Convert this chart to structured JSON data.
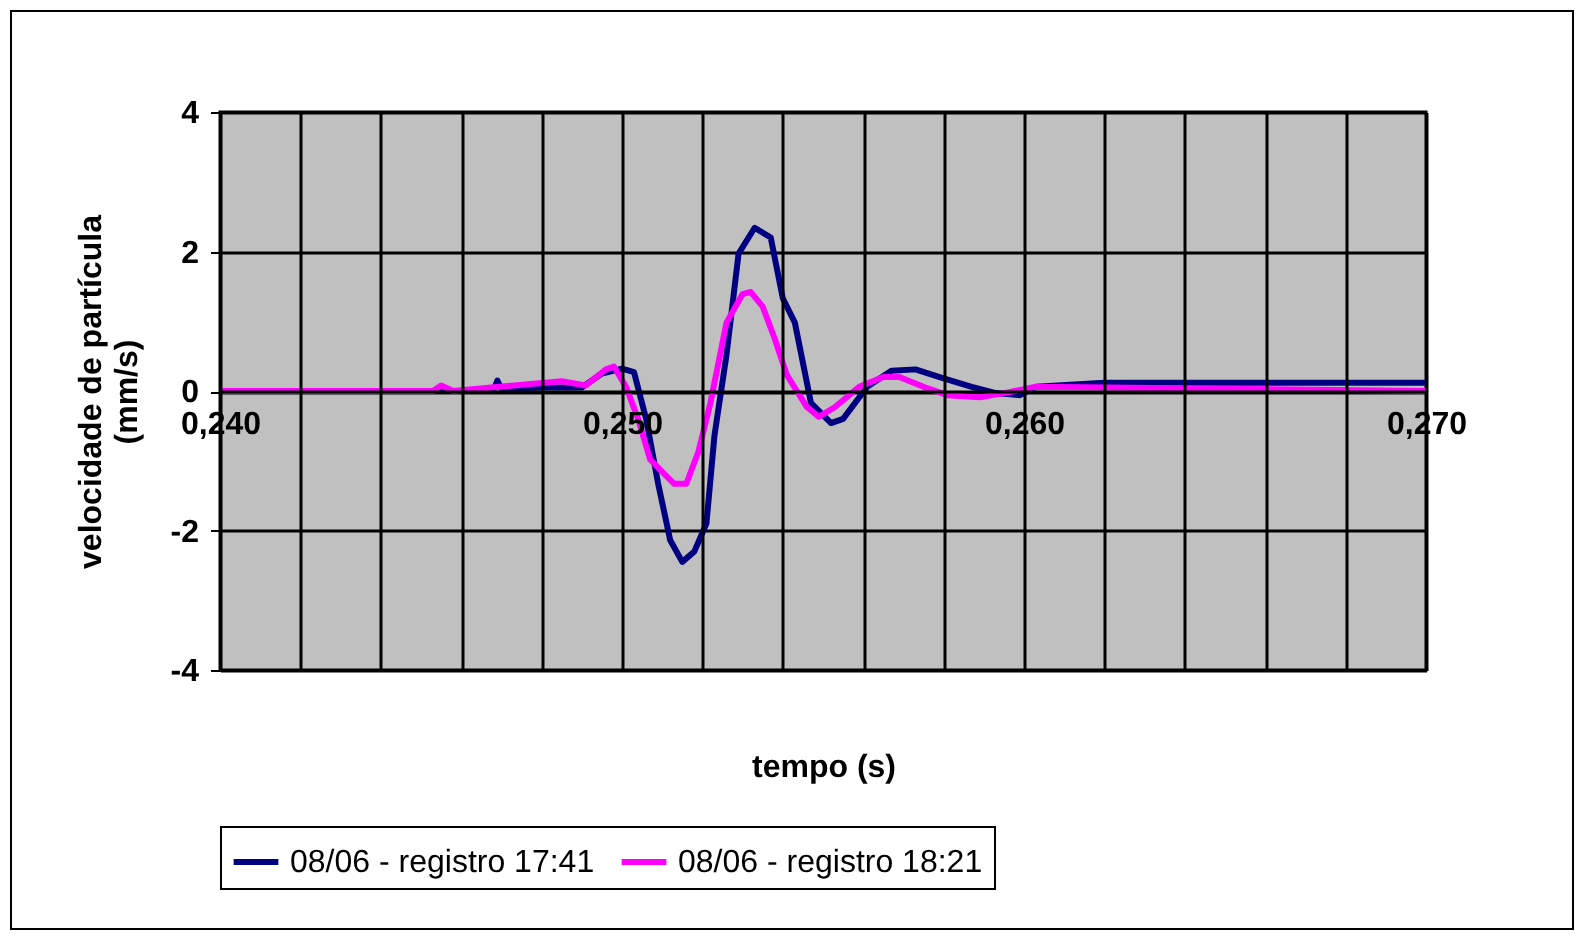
{
  "chart_data": {
    "type": "line",
    "xlabel": "tempo (s)",
    "ylabel": "velocidade de partícula\n(mm/s)",
    "xlim": [
      0.24,
      0.27
    ],
    "ylim": [
      -4,
      4
    ],
    "xticks": [
      {
        "value": 0.24,
        "label": "0,240"
      },
      {
        "value": 0.242,
        "label": null
      },
      {
        "value": 0.244,
        "label": null
      },
      {
        "value": 0.246,
        "label": null
      },
      {
        "value": 0.248,
        "label": null
      },
      {
        "value": 0.25,
        "label": "0,250"
      },
      {
        "value": 0.252,
        "label": null
      },
      {
        "value": 0.254,
        "label": null
      },
      {
        "value": 0.256,
        "label": null
      },
      {
        "value": 0.258,
        "label": null
      },
      {
        "value": 0.26,
        "label": "0,260"
      },
      {
        "value": 0.262,
        "label": null
      },
      {
        "value": 0.264,
        "label": null
      },
      {
        "value": 0.266,
        "label": null
      },
      {
        "value": 0.268,
        "label": null
      },
      {
        "value": 0.27,
        "label": "0,270"
      }
    ],
    "yticks": [
      -4,
      -2,
      0,
      2,
      4
    ],
    "grid": true,
    "legend": "bottom",
    "line_style": "solid",
    "series": [
      {
        "name": "08/06 - registro 17:41",
        "color": "#000080",
        "x": [
          0.24,
          0.2468,
          0.2469,
          0.247,
          0.248,
          0.249,
          0.2495,
          0.25,
          0.2503,
          0.2506,
          0.2509,
          0.2512,
          0.2515,
          0.2518,
          0.2521,
          0.2523,
          0.2526,
          0.2529,
          0.2533,
          0.2537,
          0.254,
          0.2543,
          0.2547,
          0.2552,
          0.2555,
          0.2561,
          0.2567,
          0.2573,
          0.2579,
          0.2587,
          0.2593,
          0.2599,
          0.2603,
          0.262,
          0.265,
          0.268,
          0.27
        ],
        "values": [
          0,
          0,
          0.15,
          0.03,
          0.05,
          0.05,
          0.25,
          0.32,
          0.27,
          -0.4,
          -1.33,
          -2.14,
          -2.45,
          -2.3,
          -1.9,
          -0.64,
          0.52,
          1.97,
          2.34,
          2.2,
          1.33,
          0.98,
          -0.17,
          -0.46,
          -0.4,
          0.06,
          0.29,
          0.31,
          0.2,
          0.06,
          -0.03,
          -0.06,
          0.06,
          0.12,
          0.12,
          0.12,
          0.12
        ]
      },
      {
        "name": "08/06 - registro 18:21",
        "color": "#ff00ff",
        "x": [
          0.24,
          0.2453,
          0.2455,
          0.2458,
          0.2485,
          0.2491,
          0.2496,
          0.2498,
          0.2501,
          0.2504,
          0.2507,
          0.251,
          0.2513,
          0.2516,
          0.2519,
          0.2522,
          0.2526,
          0.253,
          0.2532,
          0.2535,
          0.2538,
          0.2541,
          0.2546,
          0.2549,
          0.2553,
          0.2559,
          0.2565,
          0.2569,
          0.2575,
          0.2581,
          0.2589,
          0.2595,
          0.2603,
          0.27
        ],
        "values": [
          0,
          0,
          0.08,
          0,
          0.14,
          0.08,
          0.31,
          0.35,
          0.06,
          -0.4,
          -0.98,
          -1.16,
          -1.33,
          -1.33,
          -0.87,
          -0.17,
          0.98,
          1.39,
          1.42,
          1.21,
          0.75,
          0.23,
          -0.23,
          -0.37,
          -0.23,
          0.06,
          0.2,
          0.2,
          0.06,
          -0.06,
          -0.09,
          -0.03,
          0.06,
          0
        ]
      }
    ]
  }
}
